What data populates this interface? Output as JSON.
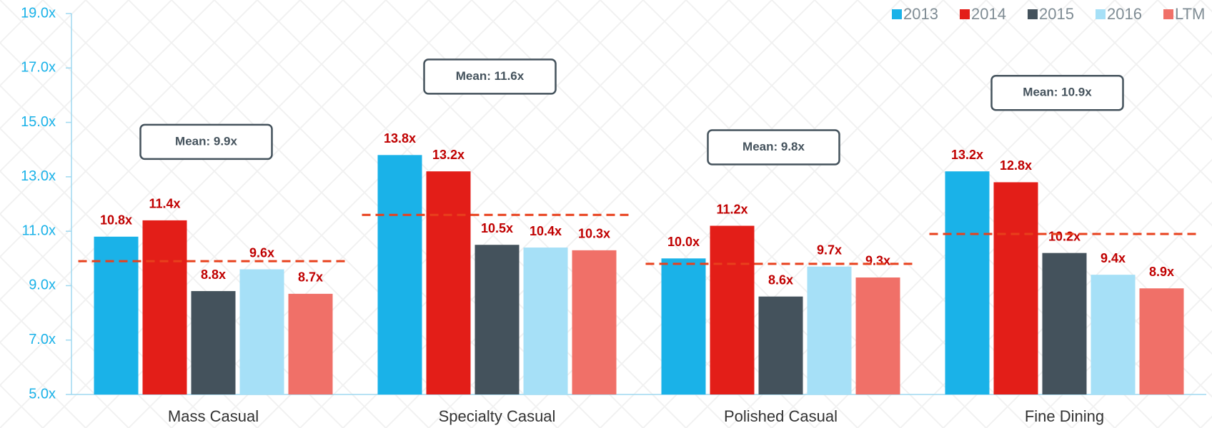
{
  "chart_data": {
    "type": "bar",
    "categories": [
      "Mass Casual",
      "Specialty Casual",
      "Polished Casual",
      "Fine Dining"
    ],
    "series": [
      {
        "name": "2013",
        "color": "#1ab2e8",
        "values": [
          10.8,
          13.8,
          10.0,
          13.2
        ],
        "value_labels": [
          "10.8x",
          "13.8x",
          "10.0x",
          "13.2x"
        ]
      },
      {
        "name": "2014",
        "color": "#e31e18",
        "values": [
          11.4,
          13.2,
          11.2,
          12.8
        ],
        "value_labels": [
          "11.4x",
          "13.2x",
          "11.2x",
          "12.8x"
        ]
      },
      {
        "name": "2015",
        "color": "#44525c",
        "values": [
          8.8,
          10.5,
          8.6,
          10.2
        ],
        "value_labels": [
          "8.8x",
          "10.5x",
          "8.6x",
          "10.2x"
        ]
      },
      {
        "name": "2016",
        "color": "#a6e0f7",
        "values": [
          9.6,
          10.4,
          9.7,
          9.4
        ],
        "value_labels": [
          "9.6x",
          "10.4x",
          "9.7x",
          "9.4x"
        ]
      },
      {
        "name": "LTM",
        "color": "#f07068",
        "values": [
          8.7,
          10.3,
          9.3,
          8.9
        ],
        "value_labels": [
          "8.7x",
          "10.3x",
          "9.3x",
          "8.9x"
        ]
      }
    ],
    "means": {
      "color": "#e8401c",
      "values": [
        9.9,
        11.6,
        9.8,
        10.9
      ],
      "labels": [
        "Mean: 9.9x",
        "Mean: 11.6x",
        "Mean: 9.8x",
        "Mean: 10.9x"
      ]
    },
    "ylim": [
      5,
      19
    ],
    "yticks": [
      {
        "value": 5,
        "label": "5.0x"
      },
      {
        "value": 7,
        "label": "7.0x"
      },
      {
        "value": 9,
        "label": "9.0x"
      },
      {
        "value": 11,
        "label": "11.0x"
      },
      {
        "value": 13,
        "label": "13.0x"
      },
      {
        "value": 15,
        "label": "15.0x"
      },
      {
        "value": 17,
        "label": "17.0x"
      },
      {
        "value": 19,
        "label": "19.0x"
      }
    ],
    "legend": "top-right"
  }
}
